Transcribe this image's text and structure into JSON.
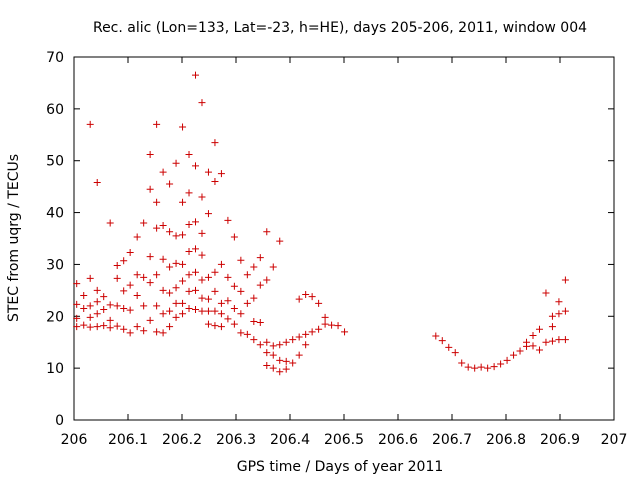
{
  "chart_data": {
    "type": "scatter",
    "title": "Rec. alic (Lon=133, Lat=-23, h=HE), days 205-206, 2011, window 004",
    "xlabel": "GPS time / Days of year 2011",
    "ylabel": "STEC from uqrg / TECUs",
    "xlim": [
      206,
      207
    ],
    "ylim": [
      0,
      70
    ],
    "x_ticks": [
      "206",
      "206.1",
      "206.2",
      "206.3",
      "206.4",
      "206.5",
      "206.6",
      "206.7",
      "206.8",
      "206.9",
      "207"
    ],
    "y_ticks": [
      "0",
      "10",
      "20",
      "30",
      "40",
      "50",
      "60",
      "70"
    ],
    "grid": false,
    "legend": null,
    "marker": "+",
    "color": "#cc0000",
    "points": [
      [
        206.005,
        26.3
      ],
      [
        206.005,
        22.3
      ],
      [
        206.005,
        19.6
      ],
      [
        206.005,
        18.0
      ],
      [
        206.018,
        24.0
      ],
      [
        206.018,
        21.5
      ],
      [
        206.018,
        18.3
      ],
      [
        206.03,
        57.0
      ],
      [
        206.03,
        27.3
      ],
      [
        206.03,
        22.0
      ],
      [
        206.03,
        19.8
      ],
      [
        206.03,
        17.9
      ],
      [
        206.043,
        45.8
      ],
      [
        206.043,
        25.0
      ],
      [
        206.043,
        22.8
      ],
      [
        206.043,
        20.5
      ],
      [
        206.043,
        18.0
      ],
      [
        206.055,
        23.8
      ],
      [
        206.055,
        21.3
      ],
      [
        206.055,
        18.2
      ],
      [
        206.067,
        38.0
      ],
      [
        206.067,
        22.2
      ],
      [
        206.067,
        19.2
      ],
      [
        206.067,
        17.8
      ],
      [
        206.08,
        29.8
      ],
      [
        206.08,
        27.3
      ],
      [
        206.08,
        22.0
      ],
      [
        206.08,
        18.1
      ],
      [
        206.092,
        30.7
      ],
      [
        206.092,
        24.9
      ],
      [
        206.092,
        21.5
      ],
      [
        206.092,
        17.5
      ],
      [
        206.104,
        32.3
      ],
      [
        206.104,
        26.0
      ],
      [
        206.104,
        21.2
      ],
      [
        206.104,
        16.8
      ],
      [
        206.117,
        35.3
      ],
      [
        206.117,
        28.0
      ],
      [
        206.117,
        24.0
      ],
      [
        206.117,
        18.0
      ],
      [
        206.129,
        38.0
      ],
      [
        206.129,
        27.5
      ],
      [
        206.129,
        22.0
      ],
      [
        206.129,
        17.2
      ],
      [
        206.141,
        51.2
      ],
      [
        206.141,
        44.5
      ],
      [
        206.141,
        31.5
      ],
      [
        206.141,
        26.5
      ],
      [
        206.141,
        19.2
      ],
      [
        206.153,
        57.0
      ],
      [
        206.153,
        42.0
      ],
      [
        206.153,
        37.0
      ],
      [
        206.153,
        28.0
      ],
      [
        206.153,
        22.0
      ],
      [
        206.153,
        17.0
      ],
      [
        206.165,
        47.8
      ],
      [
        206.165,
        37.5
      ],
      [
        206.165,
        31.0
      ],
      [
        206.165,
        25.0
      ],
      [
        206.165,
        20.5
      ],
      [
        206.165,
        16.8
      ],
      [
        206.177,
        45.5
      ],
      [
        206.177,
        36.3
      ],
      [
        206.177,
        29.5
      ],
      [
        206.177,
        24.5
      ],
      [
        206.177,
        21.0
      ],
      [
        206.177,
        18.0
      ],
      [
        206.189,
        49.5
      ],
      [
        206.189,
        35.5
      ],
      [
        206.189,
        30.2
      ],
      [
        206.189,
        25.5
      ],
      [
        206.189,
        22.5
      ],
      [
        206.189,
        19.8
      ],
      [
        206.201,
        56.5
      ],
      [
        206.201,
        42.0
      ],
      [
        206.201,
        35.7
      ],
      [
        206.201,
        30.0
      ],
      [
        206.201,
        26.8
      ],
      [
        206.201,
        22.5
      ],
      [
        206.201,
        20.5
      ],
      [
        206.213,
        51.2
      ],
      [
        206.213,
        43.8
      ],
      [
        206.213,
        37.7
      ],
      [
        206.213,
        32.5
      ],
      [
        206.213,
        28.0
      ],
      [
        206.213,
        24.8
      ],
      [
        206.213,
        21.5
      ],
      [
        206.225,
        66.5
      ],
      [
        206.225,
        49.0
      ],
      [
        206.225,
        38.2
      ],
      [
        206.225,
        33.0
      ],
      [
        206.225,
        28.5
      ],
      [
        206.225,
        25.0
      ],
      [
        206.225,
        21.3
      ],
      [
        206.237,
        61.2
      ],
      [
        206.237,
        43.0
      ],
      [
        206.237,
        36.0
      ],
      [
        206.237,
        31.8
      ],
      [
        206.237,
        27.0
      ],
      [
        206.237,
        23.5
      ],
      [
        206.237,
        21.0
      ],
      [
        206.249,
        47.8
      ],
      [
        206.249,
        39.8
      ],
      [
        206.249,
        27.5
      ],
      [
        206.249,
        23.3
      ],
      [
        206.249,
        21.0
      ],
      [
        206.249,
        18.5
      ],
      [
        206.261,
        53.5
      ],
      [
        206.261,
        46.0
      ],
      [
        206.261,
        28.5
      ],
      [
        206.261,
        24.8
      ],
      [
        206.261,
        21.0
      ],
      [
        206.261,
        18.2
      ],
      [
        206.273,
        47.5
      ],
      [
        206.273,
        30.0
      ],
      [
        206.273,
        22.5
      ],
      [
        206.273,
        20.5
      ],
      [
        206.273,
        18.0
      ],
      [
        206.285,
        38.5
      ],
      [
        206.285,
        27.5
      ],
      [
        206.285,
        23.0
      ],
      [
        206.285,
        19.5
      ],
      [
        206.297,
        35.3
      ],
      [
        206.297,
        25.8
      ],
      [
        206.297,
        21.5
      ],
      [
        206.297,
        18.5
      ],
      [
        206.309,
        30.8
      ],
      [
        206.309,
        24.8
      ],
      [
        206.309,
        20.5
      ],
      [
        206.309,
        16.8
      ],
      [
        206.321,
        28.0
      ],
      [
        206.321,
        22.5
      ],
      [
        206.321,
        16.5
      ],
      [
        206.333,
        29.5
      ],
      [
        206.333,
        23.5
      ],
      [
        206.333,
        19.0
      ],
      [
        206.333,
        15.5
      ],
      [
        206.345,
        31.3
      ],
      [
        206.345,
        26.0
      ],
      [
        206.345,
        18.8
      ],
      [
        206.345,
        14.5
      ],
      [
        206.357,
        36.3
      ],
      [
        206.357,
        27.0
      ],
      [
        206.357,
        15.0
      ],
      [
        206.357,
        13.0
      ],
      [
        206.357,
        10.5
      ],
      [
        206.369,
        29.5
      ],
      [
        206.369,
        14.3
      ],
      [
        206.369,
        12.5
      ],
      [
        206.369,
        10.0
      ],
      [
        206.381,
        34.5
      ],
      [
        206.381,
        14.5
      ],
      [
        206.381,
        11.5
      ],
      [
        206.381,
        9.3
      ],
      [
        206.393,
        15.0
      ],
      [
        206.393,
        11.3
      ],
      [
        206.393,
        9.8
      ],
      [
        206.405,
        15.5
      ],
      [
        206.405,
        11.0
      ],
      [
        206.417,
        23.3
      ],
      [
        206.417,
        16.0
      ],
      [
        206.417,
        12.5
      ],
      [
        206.429,
        24.2
      ],
      [
        206.429,
        16.5
      ],
      [
        206.429,
        14.5
      ],
      [
        206.441,
        23.8
      ],
      [
        206.441,
        17.0
      ],
      [
        206.453,
        22.5
      ],
      [
        206.453,
        17.5
      ],
      [
        206.465,
        19.8
      ],
      [
        206.465,
        18.5
      ],
      [
        206.477,
        18.3
      ],
      [
        206.489,
        18.2
      ],
      [
        206.501,
        17.0
      ],
      [
        206.67,
        16.2
      ],
      [
        206.682,
        15.3
      ],
      [
        206.694,
        14.0
      ],
      [
        206.706,
        13.0
      ],
      [
        206.718,
        11.0
      ],
      [
        206.73,
        10.2
      ],
      [
        206.742,
        10.0
      ],
      [
        206.754,
        10.2
      ],
      [
        206.766,
        10.0
      ],
      [
        206.778,
        10.3
      ],
      [
        206.79,
        10.8
      ],
      [
        206.802,
        11.5
      ],
      [
        206.814,
        12.5
      ],
      [
        206.826,
        13.3
      ],
      [
        206.838,
        14.2
      ],
      [
        206.838,
        15.0
      ],
      [
        206.85,
        16.3
      ],
      [
        206.85,
        14.3
      ],
      [
        206.862,
        17.5
      ],
      [
        206.862,
        13.5
      ],
      [
        206.874,
        24.5
      ],
      [
        206.874,
        15.0
      ],
      [
        206.886,
        20.0
      ],
      [
        206.886,
        18.0
      ],
      [
        206.886,
        15.2
      ],
      [
        206.898,
        22.8
      ],
      [
        206.898,
        20.5
      ],
      [
        206.898,
        15.5
      ],
      [
        206.91,
        27.0
      ],
      [
        206.91,
        21.0
      ],
      [
        206.91,
        15.5
      ]
    ]
  }
}
